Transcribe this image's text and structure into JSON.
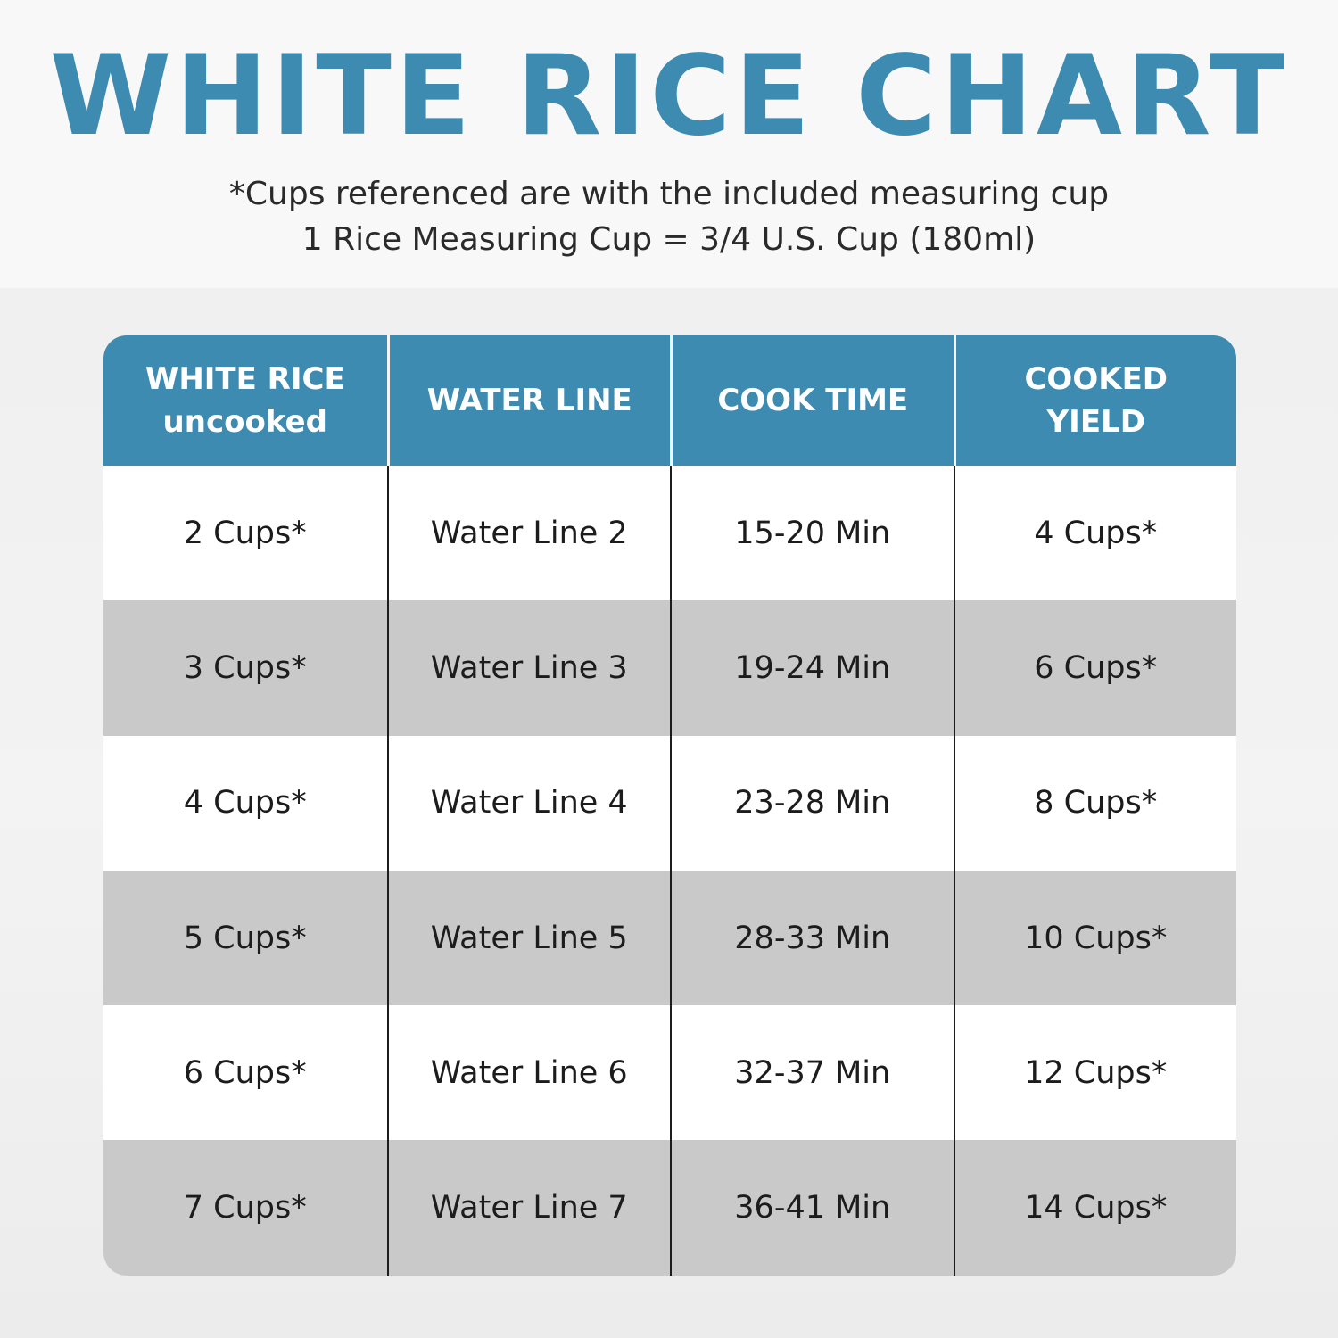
{
  "title": "WHITE RICE CHART",
  "notes": [
    "*Cups referenced are with the included measuring cup",
    "1 Rice Measuring Cup = 3/4 U.S. Cup (180ml)"
  ],
  "colors": {
    "accent": "#3d8bb0",
    "alt_row": "#c9c9c9"
  },
  "table": {
    "headers": [
      "WHITE RICE\nuncooked",
      "WATER LINE",
      "COOK TIME",
      "COOKED\nYIELD"
    ],
    "rows": [
      [
        "2 Cups*",
        "Water Line 2",
        "15-20 Min",
        "4 Cups*"
      ],
      [
        "3 Cups*",
        "Water Line 3",
        "19-24 Min",
        "6 Cups*"
      ],
      [
        "4 Cups*",
        "Water Line 4",
        "23-28 Min",
        "8 Cups*"
      ],
      [
        "5 Cups*",
        "Water Line 5",
        "28-33 Min",
        "10 Cups*"
      ],
      [
        "6 Cups*",
        "Water Line 6",
        "32-37 Min",
        "12 Cups*"
      ],
      [
        "7 Cups*",
        "Water Line 7",
        "36-41 Min",
        "14 Cups*"
      ]
    ]
  }
}
